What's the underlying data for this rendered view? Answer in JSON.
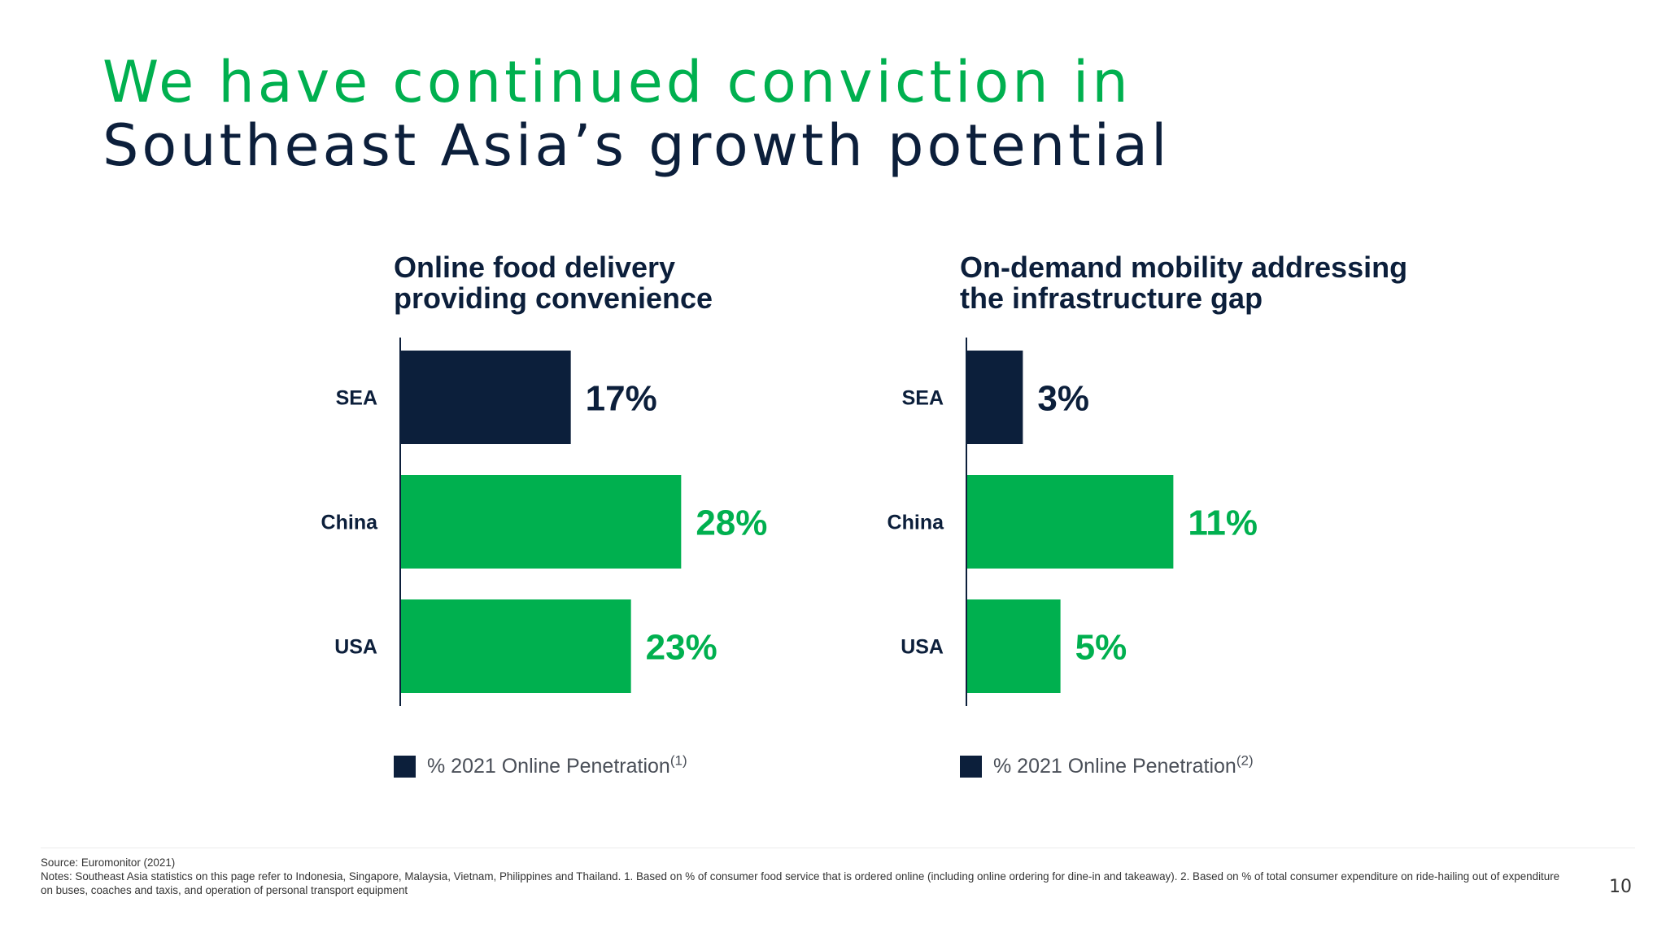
{
  "title": {
    "line1": "We have continued conviction in",
    "line2": "Southeast Asia’s growth potential"
  },
  "colors": {
    "green": "#00b04f",
    "navy": "#0c1f3b",
    "legend_text": "#4a4f58"
  },
  "chart_data": [
    {
      "type": "bar",
      "orientation": "horizontal",
      "title": "Online food delivery\nproviding convenience",
      "categories": [
        "SEA",
        "China",
        "USA"
      ],
      "values": [
        17,
        28,
        23
      ],
      "value_labels": [
        "17%",
        "28%",
        "23%"
      ],
      "bar_colors": [
        "#0c1f3b",
        "#00b04f",
        "#00b04f"
      ],
      "label_colors": [
        "#0c1f3b",
        "#00b04f",
        "#00b04f"
      ],
      "xlim": [
        0,
        30
      ],
      "grid": false,
      "legend": {
        "text": "% 2021 Online Penetration",
        "sup": "(1)",
        "placement": "bottom-left"
      }
    },
    {
      "type": "bar",
      "orientation": "horizontal",
      "title": "On-demand mobility addressing\nthe infrastructure gap",
      "categories": [
        "SEA",
        "China",
        "USA"
      ],
      "values": [
        3,
        11,
        5
      ],
      "value_labels": [
        "3%",
        "11%",
        "5%"
      ],
      "bar_colors": [
        "#0c1f3b",
        "#00b04f",
        "#00b04f"
      ],
      "label_colors": [
        "#0c1f3b",
        "#00b04f",
        "#00b04f"
      ],
      "xlim": [
        0,
        16
      ],
      "grid": false,
      "legend": {
        "text": "% 2021 Online Penetration",
        "sup": "(2)",
        "placement": "bottom-left"
      }
    }
  ],
  "footer": {
    "source": "Source: Euromonitor (2021)",
    "notes": "Notes: Southeast Asia statistics on this page refer to Indonesia, Singapore, Malaysia, Vietnam, Philippines and Thailand. 1. Based on % of consumer food service that is ordered online (including online ordering for dine-in and takeaway). 2. Based on % of total consumer expenditure on ride-hailing out of expenditure on buses, coaches and taxis, and operation of personal transport equipment",
    "page_number": "10"
  }
}
